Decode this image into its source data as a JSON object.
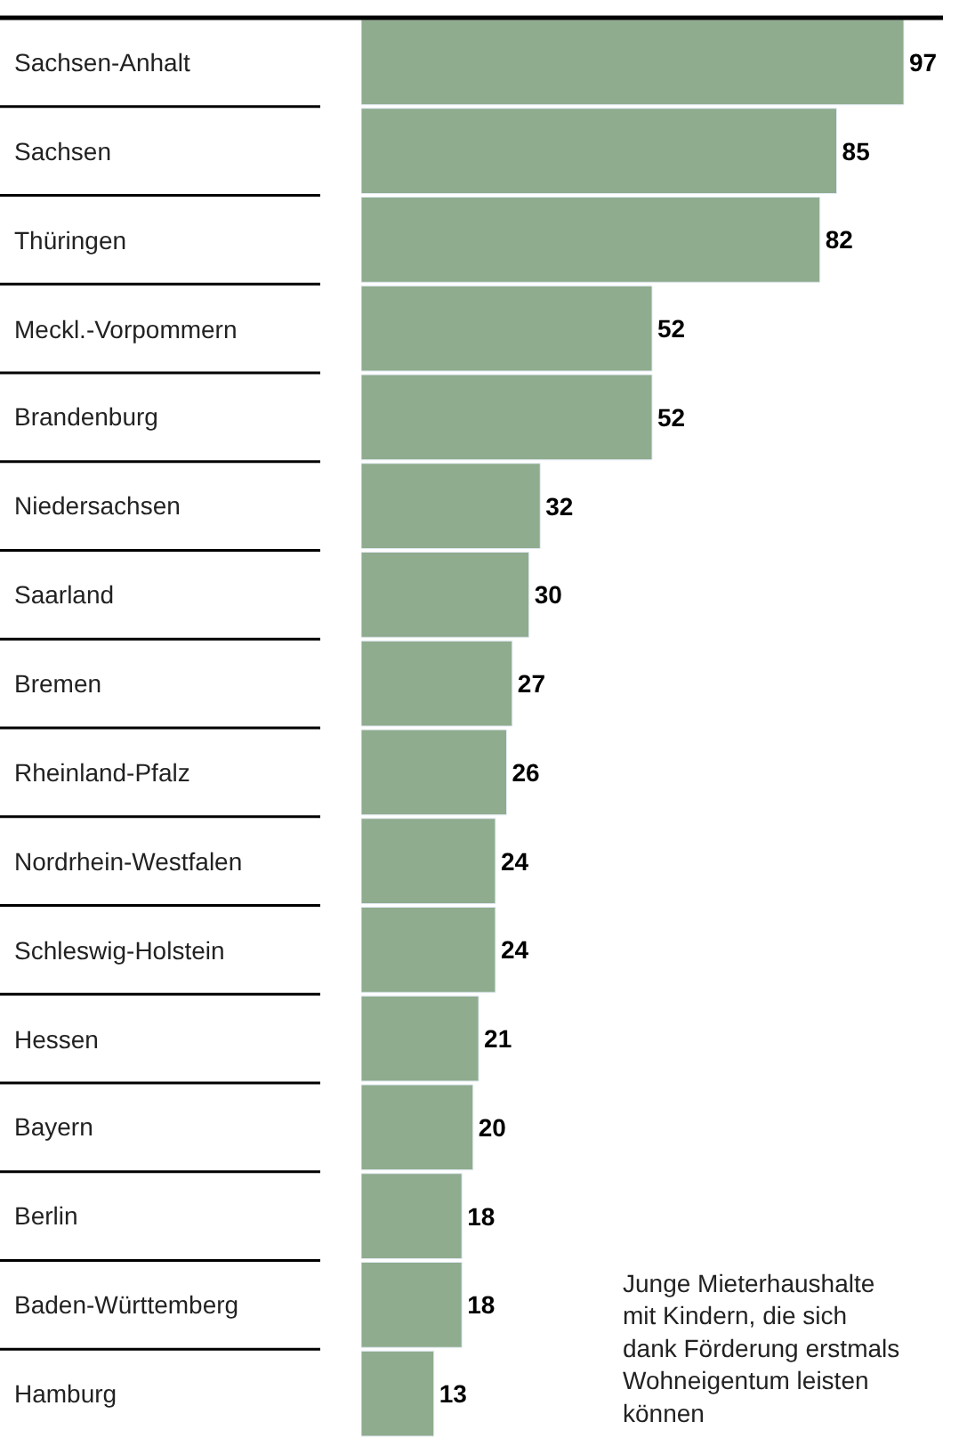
{
  "chart_data": {
    "type": "bar",
    "orientation": "horizontal",
    "categories": [
      "Sachsen-Anhalt",
      "Sachsen",
      "Thüringen",
      "Meckl.-Vorpommern",
      "Brandenburg",
      "Niedersachsen",
      "Saarland",
      "Bremen",
      "Rheinland-Pfalz",
      "Nordrhein-Westfalen",
      "Schleswig-Holstein",
      "Hessen",
      "Bayern",
      "Berlin",
      "Baden-Württemberg",
      "Hamburg"
    ],
    "values": [
      97,
      85,
      82,
      52,
      52,
      32,
      30,
      27,
      26,
      24,
      24,
      21,
      20,
      18,
      18,
      13
    ],
    "color": "#8fac8e",
    "data_labels": true,
    "annotations": [
      "Junge Mieterhaushalte\nmit Kindern, die sich\ndank Förderung erstmals\nWohneigentum leisten\nkönnen"
    ]
  }
}
